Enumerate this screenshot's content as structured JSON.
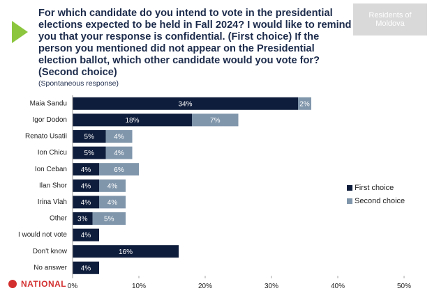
{
  "chart_data": {
    "type": "stacked-barh",
    "title": "For which candidate do you intend to vote in the presidential elections expected to be held in Fall 2024? I would like to remind you that your response is confidential. (First choice) If the person you mentioned did not appear on the Presidential election ballot, which other candidate would you vote for? (Second choice)",
    "subtitle": "(Spontaneous response)",
    "badge": "Residents of Moldova",
    "watermark": "NATIONAL",
    "categories": [
      "Maia Sandu",
      "Igor Dodon",
      "Renato Usatii",
      "Ion Chicu",
      "Ion Ceban",
      "Ilan Shor",
      "Irina Vlah",
      "Other",
      "I would not vote",
      "Don't know",
      "No answer"
    ],
    "series": [
      {
        "name": "First choice",
        "color": "#0f1d3c",
        "values": [
          34,
          18,
          5,
          5,
          4,
          4,
          4,
          3,
          4,
          16,
          4
        ],
        "value_labels": [
          "34%",
          "18%",
          "5%",
          "5%",
          "4%",
          "4%",
          "4%",
          "3%",
          "4%",
          "16%",
          "4%"
        ]
      },
      {
        "name": "Second choice",
        "color": "#8096ab",
        "values": [
          2,
          7,
          4,
          4,
          6,
          4,
          4,
          5,
          null,
          null,
          null
        ],
        "value_labels": [
          "2%",
          "7%",
          "4%",
          "4%",
          "6%",
          "4%",
          "4%",
          "5%",
          null,
          null,
          null
        ]
      }
    ],
    "xlim": [
      0,
      50
    ],
    "xticks": [
      {
        "value": 0,
        "label": "0%"
      },
      {
        "value": 10,
        "label": "10%"
      },
      {
        "value": 20,
        "label": "20%"
      },
      {
        "value": 30,
        "label": "30%"
      },
      {
        "value": 40,
        "label": "40%"
      },
      {
        "value": 50,
        "label": "50%"
      }
    ],
    "legend": "right"
  }
}
